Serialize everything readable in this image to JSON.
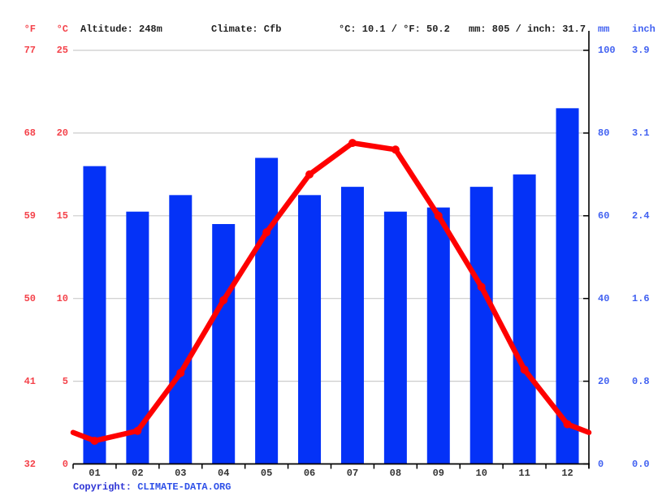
{
  "header": {
    "unit_f": "°F",
    "unit_c": "°C",
    "altitude": "Altitude: 248m",
    "climate": "Climate: Cfb",
    "temp_summary": "°C: 10.1 / °F: 50.2",
    "precip_summary": "mm: 805 / inch: 31.7",
    "unit_mm": "mm",
    "unit_inch": "inch"
  },
  "footer": {
    "copyright_label": "Copyright: ",
    "link_text": "CLIMATE-DATA.ORG"
  },
  "colors": {
    "bar_blue": "#0432f7",
    "line_red": "#fe0000",
    "axis_red_labels": "#f4424a",
    "axis_blue_labels": "#4161f1",
    "grid": "#cccccc",
    "axis_black": "#000000",
    "month_label": "#333333"
  },
  "chart_data": {
    "type": "combo",
    "title": "",
    "categories": [
      "01",
      "02",
      "03",
      "04",
      "05",
      "06",
      "07",
      "08",
      "09",
      "10",
      "11",
      "12"
    ],
    "series": [
      {
        "name": "Precipitation",
        "type": "bar",
        "unit": "mm",
        "values": [
          72,
          61,
          65,
          58,
          74,
          65,
          67,
          61,
          62,
          67,
          70,
          86
        ]
      },
      {
        "name": "Temperature",
        "type": "line",
        "unit": "°C",
        "values": [
          1.4,
          2.0,
          5.5,
          9.9,
          14.0,
          17.5,
          19.4,
          19.0,
          15.0,
          10.7,
          5.7,
          2.4
        ],
        "edge_left": 1.9,
        "edge_right": 1.9
      }
    ],
    "axis_left": {
      "f_ticks": [
        "77",
        "68",
        "59",
        "50",
        "41",
        "32"
      ],
      "c_ticks": [
        "25",
        "20",
        "15",
        "10",
        "5",
        "0"
      ],
      "c_range": [
        0,
        25
      ]
    },
    "axis_right": {
      "mm_ticks": [
        "100",
        "80",
        "60",
        "40",
        "20",
        "0"
      ],
      "inch_ticks": [
        "3.9",
        "3.1",
        "2.4",
        "1.6",
        "0.8",
        "0.0"
      ],
      "mm_range": [
        0,
        100
      ]
    },
    "grid": true,
    "legend": "none"
  }
}
